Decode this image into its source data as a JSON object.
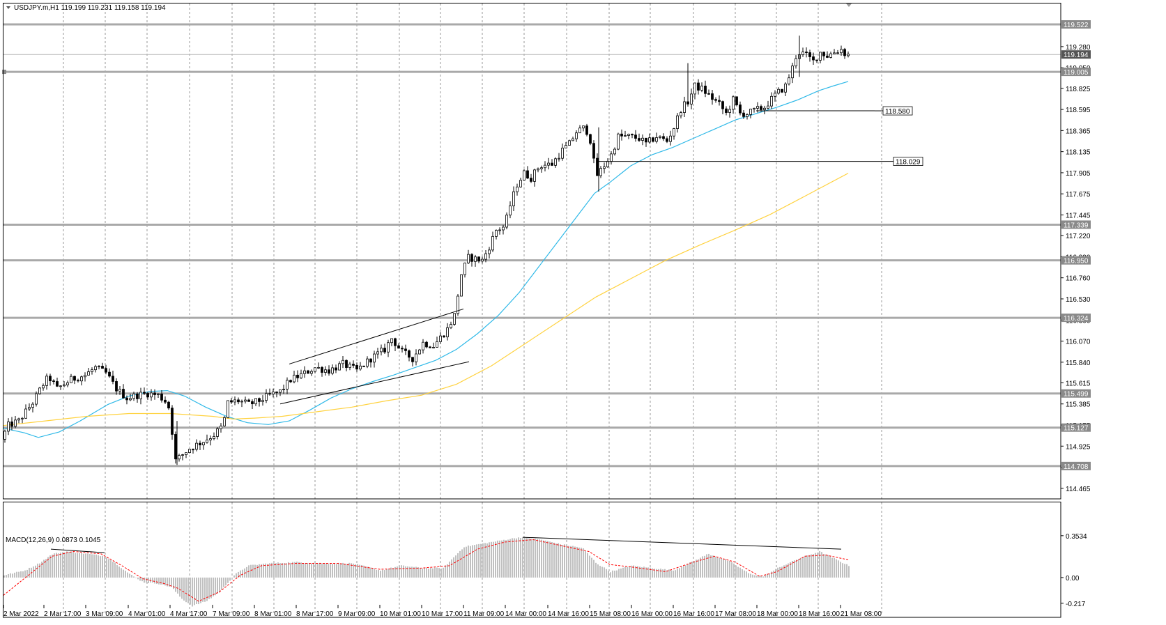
{
  "header": {
    "symbol_line": "USDJPY.m,H1  119.199 119.231 119.158 119.194",
    "macd_line": "MACD(12,26,9) 0.0873 0.1045"
  },
  "colors": {
    "candle": "#000000",
    "ma_fast": "#2fb9e8",
    "ma_slow": "#ffd23f",
    "level_line": "#a9a9a9",
    "tag_bg": "#8a8a8a",
    "macd_hist": "#c0c0c0",
    "macd_signal": "#ff0000",
    "grid": "#9a9a9a"
  },
  "chart_data": {
    "type": "candlestick",
    "symbol": "USDJPY.m",
    "timeframe": "H1",
    "ohlc_current": {
      "open": 119.199,
      "high": 119.231,
      "low": 119.158,
      "close": 119.194
    },
    "ylim": [
      114.35,
      119.75
    ],
    "y_ticks": [
      "119.280",
      "119.050",
      "118.825",
      "118.595",
      "118.365",
      "118.135",
      "117.905",
      "117.675",
      "117.445",
      "117.220",
      "116.990",
      "116.760",
      "116.530",
      "116.300",
      "116.070",
      "115.840",
      "115.615",
      "115.385",
      "115.155",
      "114.925",
      "114.695",
      "114.465"
    ],
    "x_labels": [
      "2 Mar 2022",
      "2 Mar 17:00",
      "3 Mar 09:00",
      "4 Mar 01:00",
      "4 Mar 17:00",
      "7 Mar 09:00",
      "8 Mar 01:00",
      "8 Mar 17:00",
      "9 Mar 09:00",
      "10 Mar 01:00",
      "10 Mar 17:00",
      "11 Mar 09:00",
      "14 Mar 00:00",
      "14 Mar 16:00",
      "15 Mar 08:00",
      "16 Mar 00:00",
      "16 Mar 16:00",
      "17 Mar 08:00",
      "18 Mar 00:00",
      "18 Mar 16:00",
      "21 Mar 08:00"
    ],
    "price_path": [
      [
        0,
        115.0
      ],
      [
        10,
        115.15
      ],
      [
        25,
        115.2
      ],
      [
        45,
        115.4
      ],
      [
        60,
        115.6
      ],
      [
        68,
        115.68
      ],
      [
        80,
        115.55
      ],
      [
        100,
        115.65
      ],
      [
        120,
        115.7
      ],
      [
        135,
        115.78
      ],
      [
        150,
        115.72
      ],
      [
        165,
        115.55
      ],
      [
        180,
        115.45
      ],
      [
        195,
        115.48
      ],
      [
        210,
        115.5
      ],
      [
        225,
        115.48
      ],
      [
        238,
        115.4
      ],
      [
        244,
        115.25
      ],
      [
        247,
        114.75
      ],
      [
        255,
        114.8
      ],
      [
        270,
        114.9
      ],
      [
        290,
        114.98
      ],
      [
        305,
        115.05
      ],
      [
        318,
        115.15
      ],
      [
        325,
        115.4
      ],
      [
        340,
        115.42
      ],
      [
        355,
        115.38
      ],
      [
        370,
        115.42
      ],
      [
        385,
        115.48
      ],
      [
        400,
        115.52
      ],
      [
        415,
        115.65
      ],
      [
        430,
        115.7
      ],
      [
        450,
        115.78
      ],
      [
        470,
        115.75
      ],
      [
        490,
        115.82
      ],
      [
        510,
        115.75
      ],
      [
        530,
        115.88
      ],
      [
        550,
        115.98
      ],
      [
        560,
        116.1
      ],
      [
        575,
        115.95
      ],
      [
        590,
        115.88
      ],
      [
        605,
        116.05
      ],
      [
        620,
        116.02
      ],
      [
        640,
        116.2
      ],
      [
        650,
        116.35
      ],
      [
        660,
        116.8
      ],
      [
        670,
        116.98
      ],
      [
        690,
        116.95
      ],
      [
        700,
        117.1
      ],
      [
        710,
        117.28
      ],
      [
        722,
        117.32
      ],
      [
        730,
        117.55
      ],
      [
        740,
        117.78
      ],
      [
        750,
        117.9
      ],
      [
        760,
        117.85
      ],
      [
        772,
        117.98
      ],
      [
        790,
        118.0
      ],
      [
        805,
        118.15
      ],
      [
        815,
        118.22
      ],
      [
        825,
        118.35
      ],
      [
        838,
        118.4
      ],
      [
        848,
        118.2
      ],
      [
        852,
        117.85
      ],
      [
        862,
        117.95
      ],
      [
        875,
        118.1
      ],
      [
        885,
        118.3
      ],
      [
        900,
        118.3
      ],
      [
        915,
        118.28
      ],
      [
        925,
        118.22
      ],
      [
        940,
        118.3
      ],
      [
        955,
        118.25
      ],
      [
        965,
        118.4
      ],
      [
        975,
        118.6
      ],
      [
        985,
        118.68
      ],
      [
        995,
        118.85
      ],
      [
        1005,
        118.82
      ],
      [
        1015,
        118.75
      ],
      [
        1030,
        118.65
      ],
      [
        1040,
        118.55
      ],
      [
        1050,
        118.7
      ],
      [
        1060,
        118.55
      ],
      [
        1070,
        118.55
      ],
      [
        1080,
        118.58
      ],
      [
        1095,
        118.62
      ],
      [
        1110,
        118.75
      ],
      [
        1125,
        118.85
      ],
      [
        1135,
        119.05
      ],
      [
        1142,
        119.22
      ],
      [
        1152,
        119.2
      ],
      [
        1165,
        119.12
      ],
      [
        1175,
        119.22
      ],
      [
        1185,
        119.18
      ],
      [
        1195,
        119.22
      ],
      [
        1205,
        119.25
      ],
      [
        1212,
        119.19
      ]
    ],
    "series": [
      {
        "name": "MA fast",
        "points": [
          [
            0,
            115.12
          ],
          [
            30,
            115.07
          ],
          [
            50,
            115.02
          ],
          [
            80,
            115.08
          ],
          [
            110,
            115.2
          ],
          [
            150,
            115.38
          ],
          [
            180,
            115.47
          ],
          [
            210,
            115.52
          ],
          [
            235,
            115.53
          ],
          [
            260,
            115.47
          ],
          [
            290,
            115.35
          ],
          [
            320,
            115.25
          ],
          [
            350,
            115.18
          ],
          [
            380,
            115.16
          ],
          [
            410,
            115.2
          ],
          [
            440,
            115.32
          ],
          [
            470,
            115.45
          ],
          [
            500,
            115.55
          ],
          [
            530,
            115.63
          ],
          [
            560,
            115.7
          ],
          [
            590,
            115.78
          ],
          [
            620,
            115.86
          ],
          [
            650,
            115.98
          ],
          [
            680,
            116.15
          ],
          [
            710,
            116.35
          ],
          [
            740,
            116.6
          ],
          [
            770,
            116.9
          ],
          [
            800,
            117.2
          ],
          [
            825,
            117.45
          ],
          [
            848,
            117.68
          ],
          [
            870,
            117.8
          ],
          [
            900,
            117.98
          ],
          [
            930,
            118.1
          ],
          [
            960,
            118.18
          ],
          [
            990,
            118.28
          ],
          [
            1020,
            118.38
          ],
          [
            1050,
            118.48
          ],
          [
            1080,
            118.55
          ],
          [
            1110,
            118.62
          ],
          [
            1140,
            118.7
          ],
          [
            1170,
            118.8
          ],
          [
            1190,
            118.85
          ],
          [
            1212,
            118.9
          ]
        ]
      },
      {
        "name": "MA slow",
        "points": [
          [
            0,
            115.15
          ],
          [
            60,
            115.2
          ],
          [
            120,
            115.25
          ],
          [
            180,
            115.28
          ],
          [
            240,
            115.28
          ],
          [
            300,
            115.25
          ],
          [
            330,
            115.22
          ],
          [
            360,
            115.23
          ],
          [
            400,
            115.25
          ],
          [
            450,
            115.3
          ],
          [
            500,
            115.35
          ],
          [
            550,
            115.42
          ],
          [
            600,
            115.48
          ],
          [
            650,
            115.6
          ],
          [
            700,
            115.8
          ],
          [
            750,
            116.05
          ],
          [
            800,
            116.3
          ],
          [
            850,
            116.55
          ],
          [
            900,
            116.75
          ],
          [
            950,
            116.95
          ],
          [
            1000,
            117.12
          ],
          [
            1050,
            117.28
          ],
          [
            1100,
            117.45
          ],
          [
            1150,
            117.65
          ],
          [
            1212,
            117.9
          ]
        ]
      }
    ],
    "levels": [
      {
        "price": 119.522,
        "label": "119.522",
        "style": "thick"
      },
      {
        "price": 119.194,
        "label": "119.194",
        "style": "bid"
      },
      {
        "price": 119.005,
        "label": "119.005",
        "style": "thick"
      },
      {
        "price": 117.339,
        "label": "117.339",
        "style": "thick"
      },
      {
        "price": 116.95,
        "label": "116.950",
        "style": "thick"
      },
      {
        "price": 116.324,
        "label": "116.324",
        "style": "thick"
      },
      {
        "price": 115.499,
        "label": "115.499",
        "style": "thick"
      },
      {
        "price": 115.127,
        "label": "115.127",
        "style": "thick"
      },
      {
        "price": 114.708,
        "label": "114.708",
        "style": "thick"
      }
    ],
    "hlines": [
      {
        "price": 118.58,
        "label": "118.580",
        "x_start": 1080,
        "x_end": 1250
      },
      {
        "price": 118.029,
        "label": "118.029",
        "x_start": 852,
        "x_end": 1265
      }
    ],
    "trendlines": [
      {
        "x1": 410,
        "p1": 115.82,
        "x2": 660,
        "p2": 116.42
      },
      {
        "x1": 397,
        "p1": 115.385,
        "x2": 668,
        "p2": 115.845
      }
    ],
    "macd": {
      "ylim": [
        -0.23,
        0.37
      ],
      "y_ticks": [
        "0.3534",
        "0.00",
        "-0.217"
      ],
      "hist_path": [
        [
          0,
          0.02
        ],
        [
          30,
          0.06
        ],
        [
          50,
          0.12
        ],
        [
          70,
          0.2
        ],
        [
          90,
          0.22
        ],
        [
          120,
          0.2
        ],
        [
          145,
          0.18
        ],
        [
          160,
          0.12
        ],
        [
          180,
          0.03
        ],
        [
          200,
          -0.04
        ],
        [
          220,
          -0.05
        ],
        [
          240,
          -0.08
        ],
        [
          255,
          -0.18
        ],
        [
          270,
          -0.24
        ],
        [
          290,
          -0.2
        ],
        [
          310,
          -0.12
        ],
        [
          330,
          0.02
        ],
        [
          350,
          0.1
        ],
        [
          380,
          0.12
        ],
        [
          420,
          0.13
        ],
        [
          460,
          0.12
        ],
        [
          500,
          0.12
        ],
        [
          540,
          0.06
        ],
        [
          570,
          0.1
        ],
        [
          600,
          0.08
        ],
        [
          630,
          0.08
        ],
        [
          660,
          0.26
        ],
        [
          700,
          0.3
        ],
        [
          740,
          0.34
        ],
        [
          770,
          0.32
        ],
        [
          800,
          0.28
        ],
        [
          830,
          0.25
        ],
        [
          850,
          0.12
        ],
        [
          870,
          0.05
        ],
        [
          900,
          0.1
        ],
        [
          930,
          0.08
        ],
        [
          960,
          0.06
        ],
        [
          990,
          0.14
        ],
        [
          1010,
          0.2
        ],
        [
          1040,
          0.14
        ],
        [
          1070,
          0.03
        ],
        [
          1090,
          0.01
        ],
        [
          1110,
          0.08
        ],
        [
          1140,
          0.16
        ],
        [
          1170,
          0.22
        ],
        [
          1212,
          0.1
        ]
      ],
      "signal_path": [
        [
          0,
          -0.15
        ],
        [
          40,
          0.04
        ],
        [
          70,
          0.18
        ],
        [
          100,
          0.22
        ],
        [
          140,
          0.2
        ],
        [
          170,
          0.1
        ],
        [
          200,
          -0.01
        ],
        [
          230,
          -0.05
        ],
        [
          250,
          -0.09
        ],
        [
          280,
          -0.2
        ],
        [
          310,
          -0.12
        ],
        [
          340,
          0.02
        ],
        [
          370,
          0.1
        ],
        [
          420,
          0.12
        ],
        [
          480,
          0.12
        ],
        [
          540,
          0.07
        ],
        [
          600,
          0.08
        ],
        [
          640,
          0.1
        ],
        [
          680,
          0.24
        ],
        [
          720,
          0.3
        ],
        [
          760,
          0.32
        ],
        [
          800,
          0.27
        ],
        [
          840,
          0.22
        ],
        [
          870,
          0.11
        ],
        [
          900,
          0.09
        ],
        [
          950,
          0.05
        ],
        [
          990,
          0.13
        ],
        [
          1020,
          0.18
        ],
        [
          1050,
          0.13
        ],
        [
          1085,
          0.01
        ],
        [
          1110,
          0.05
        ],
        [
          1150,
          0.18
        ],
        [
          1180,
          0.19
        ],
        [
          1212,
          0.15
        ]
      ],
      "trendlines": [
        {
          "x1": 68,
          "v1": 0.24,
          "x2": 145,
          "v2": 0.21
        },
        {
          "x1": 745,
          "v1": 0.34,
          "x2": 1202,
          "v2": 0.24
        }
      ]
    }
  }
}
